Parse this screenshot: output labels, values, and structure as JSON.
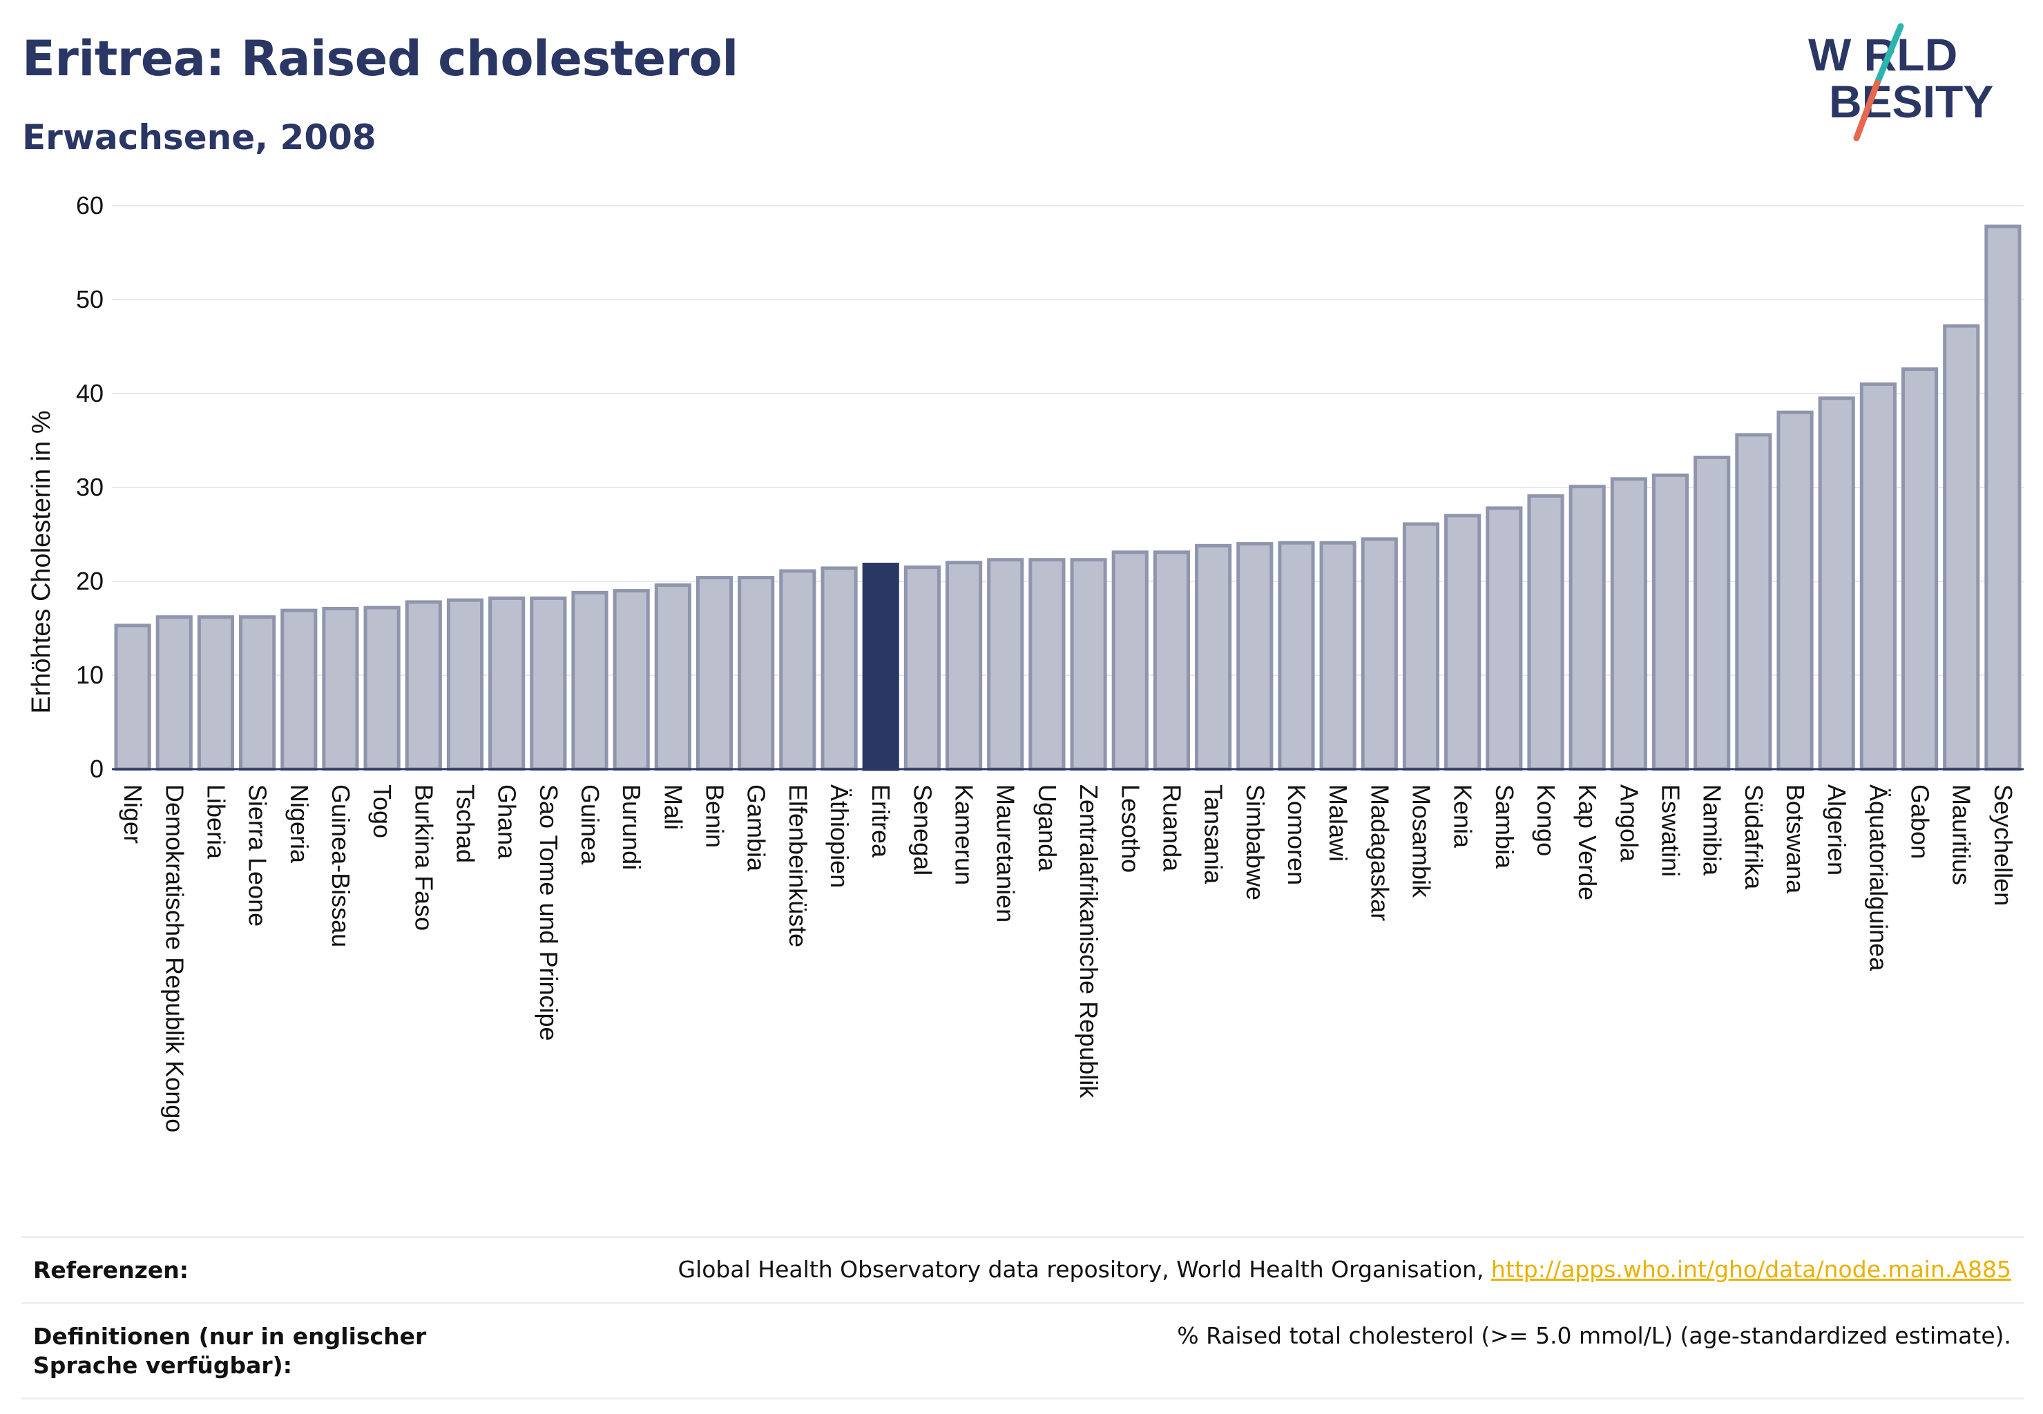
{
  "header": {
    "title": "Eritrea: Raised cholesterol",
    "subtitle": "Erwachsene, 2008",
    "logo_top": "W RLD",
    "logo_bottom": "BESITY",
    "logo_colors": {
      "text": "#2a3663",
      "slash_top": "#2bb5b0",
      "slash_bottom": "#e5684f"
    }
  },
  "chart_data": {
    "type": "bar",
    "title": "Eritrea: Raised cholesterol",
    "subtitle": "Erwachsene, 2008",
    "ylabel": "Erhöhtes Cholesterin in %",
    "xlabel": "",
    "ylim": [
      0,
      60
    ],
    "yticks": [
      0,
      10,
      20,
      30,
      40,
      50,
      60
    ],
    "grid": true,
    "highlight": "Eritrea",
    "colors": {
      "bar": "#bcc0ce",
      "bar_edge": "#8f95ad",
      "highlight": "#2a3663"
    },
    "categories": [
      "Niger",
      "Demokratische Republik Kongo",
      "Liberia",
      "Sierra Leone",
      "Nigeria",
      "Guinea-Bissau",
      "Togo",
      "Burkina Faso",
      "Tschad",
      "Ghana",
      "Sao Tome und Principe",
      "Guinea",
      "Burundi",
      "Mali",
      "Benin",
      "Gambia",
      "Elfenbeinküste",
      "Äthiopien",
      "Eritrea",
      "Senegal",
      "Kamerun",
      "Mauretanien",
      "Uganda",
      "Zentralafrikanische Republik",
      "Lesotho",
      "Ruanda",
      "Tansania",
      "Simbabwe",
      "Komoren",
      "Malawi",
      "Madagaskar",
      "Mosambik",
      "Kenia",
      "Sambia",
      "Kongo",
      "Kap Verde",
      "Angola",
      "Eswatini",
      "Namibia",
      "Südafrika",
      "Botswana",
      "Algerien",
      "Äquatorialguinea",
      "Gabon",
      "Mauritius",
      "Seychellen"
    ],
    "values": [
      15.3,
      16.2,
      16.2,
      16.2,
      16.9,
      17.1,
      17.2,
      17.8,
      18.0,
      18.2,
      18.2,
      18.8,
      19.0,
      19.6,
      20.4,
      20.4,
      21.1,
      21.4,
      21.8,
      21.5,
      22.0,
      22.3,
      22.3,
      22.3,
      23.1,
      23.1,
      23.8,
      24.0,
      24.1,
      24.1,
      24.5,
      26.1,
      27.0,
      27.8,
      29.1,
      30.1,
      30.9,
      31.3,
      33.2,
      35.6,
      38.0,
      39.5,
      41.0,
      42.6,
      47.2,
      57.8
    ]
  },
  "references": {
    "label": "Referenzen:",
    "text": "Global Health Observatory data repository, World Health Organisation,",
    "link": "http://apps.who.int/gho/data/node.main.A885"
  },
  "definitions": {
    "label": "Definitionen (nur in englischer Sprache verfügbar):",
    "text": "% Raised total cholesterol (>= 5.0 mmol/L) (age-standardized estimate)."
  }
}
